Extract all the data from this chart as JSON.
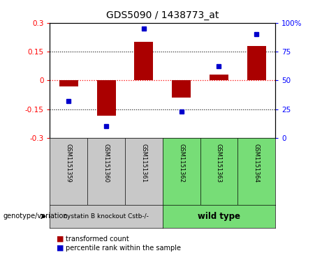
{
  "title": "GDS5090 / 1438773_at",
  "categories": [
    "GSM1151359",
    "GSM1151360",
    "GSM1151361",
    "GSM1151362",
    "GSM1151363",
    "GSM1151364"
  ],
  "bar_values": [
    -0.03,
    -0.185,
    0.2,
    -0.09,
    0.03,
    0.18
  ],
  "percentile_values": [
    32,
    10,
    95,
    23,
    62,
    90
  ],
  "bar_color": "#AA0000",
  "dot_color": "#0000CC",
  "ylim_left": [
    -0.3,
    0.3
  ],
  "ylim_right": [
    0,
    100
  ],
  "yticks_left": [
    -0.3,
    -0.15,
    0,
    0.15,
    0.3
  ],
  "yticks_right": [
    0,
    25,
    50,
    75,
    100
  ],
  "hline_dotted_values": [
    0.15,
    -0.15
  ],
  "hline_red_value": 0,
  "group1_indices": [
    0,
    1,
    2
  ],
  "group2_indices": [
    3,
    4,
    5
  ],
  "group1_label": "cystatin B knockout Cstb-/-",
  "group2_label": "wild type",
  "group1_color": "#C8C8C8",
  "group2_color": "#77DD77",
  "genotype_label": "genotype/variation",
  "legend_bar_label": "transformed count",
  "legend_dot_label": "percentile rank within the sample",
  "bar_width": 0.5,
  "background_color": "#FFFFFF"
}
